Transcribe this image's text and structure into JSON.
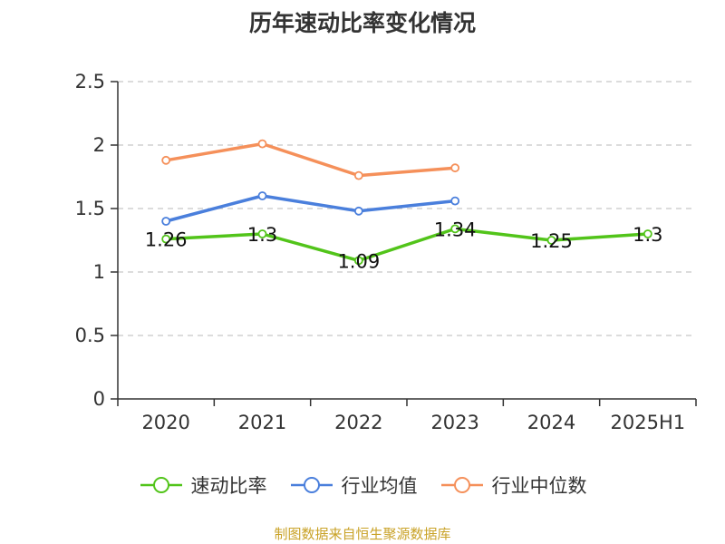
{
  "chart_data": {
    "type": "line",
    "title": "历年速动比率变化情况",
    "categories": [
      "2020",
      "2021",
      "2022",
      "2023",
      "2024",
      "2025H1"
    ],
    "ylim": [
      0,
      2.5
    ],
    "yticks": [
      "0",
      "0.5",
      "1",
      "1.5",
      "2",
      "2.5"
    ],
    "grid": true,
    "legend_position": "bottom",
    "series": [
      {
        "name": "速动比率",
        "color": "#52c41a",
        "values": [
          1.26,
          1.3,
          1.09,
          1.34,
          1.25,
          1.3
        ],
        "labels": [
          "1.26",
          "1.3",
          "1.09",
          "1.34",
          "1.25",
          "1.3"
        ]
      },
      {
        "name": "行业均值",
        "color": "#4a7fdc",
        "values": [
          1.4,
          1.6,
          1.48,
          1.56,
          null,
          null
        ]
      },
      {
        "name": "行业中位数",
        "color": "#f5905a",
        "values": [
          1.88,
          2.01,
          1.76,
          1.82,
          null,
          null
        ]
      }
    ]
  },
  "source": "制图数据来自恒生聚源数据库"
}
